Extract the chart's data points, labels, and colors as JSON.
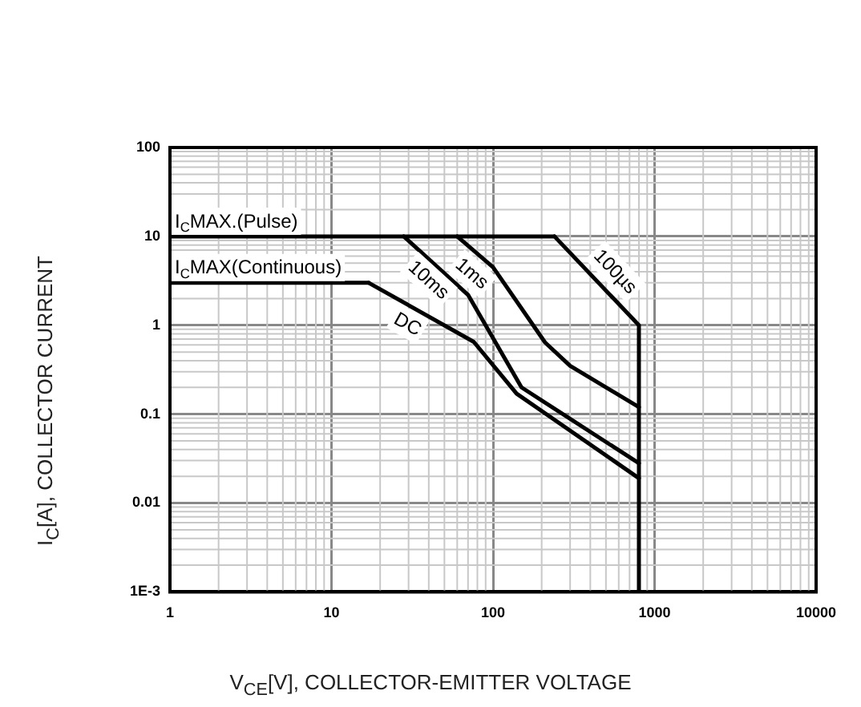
{
  "chart_data": {
    "type": "line",
    "xlabel": "V$_{CE}$[V], COLLECTOR-EMITTER VOLTAGE",
    "ylabel": "I$_{C}$[A], COLLECTOR CURRENT",
    "log": "xy",
    "grid": true,
    "legend": false,
    "marker": "none",
    "line_style": "solid",
    "xlim": [
      1,
      10000
    ],
    "xticks": [
      1,
      10,
      100,
      1000,
      10000
    ],
    "ylim": [
      0.001,
      100
    ],
    "yticks": [
      {
        "value": 0.001,
        "label": "1E-3"
      },
      0.01,
      0.1,
      1,
      10,
      100
    ],
    "series": [
      {
        "name": "I$_{C}$MAX.(Pulse)",
        "color": "#000000",
        "x": [
          1,
          240
        ],
        "values": [
          10,
          10
        ]
      },
      {
        "name": "100µs",
        "color": "#000000",
        "x": [
          240,
          800,
          800
        ],
        "values": [
          10,
          1,
          0.001
        ]
      },
      {
        "name": "1ms",
        "color": "#000000",
        "x": [
          60,
          100,
          210,
          300,
          800
        ],
        "values": [
          10,
          4.5,
          0.64,
          0.35,
          0.12
        ]
      },
      {
        "name": "10ms",
        "color": "#000000",
        "x": [
          28,
          70,
          150,
          800
        ],
        "values": [
          10,
          2.2,
          0.2,
          0.028
        ]
      },
      {
        "name": "I$_{C}$MAX(Continuous)",
        "color": "#000000",
        "x": [
          1,
          17
        ],
        "values": [
          3,
          3
        ]
      },
      {
        "name": "DC",
        "color": "#000000",
        "x": [
          17,
          76,
          140,
          800
        ],
        "values": [
          3,
          0.65,
          0.17,
          0.019
        ]
      }
    ]
  }
}
